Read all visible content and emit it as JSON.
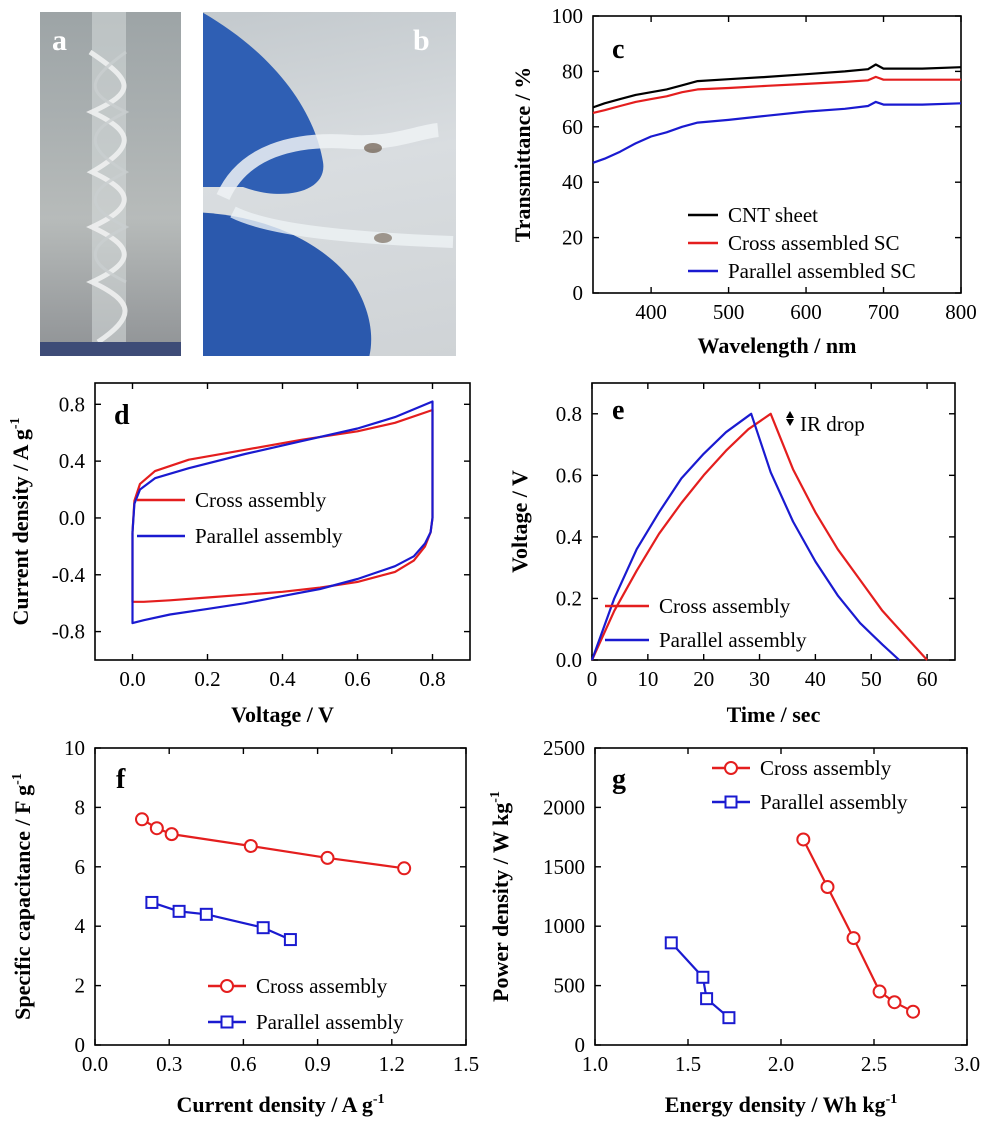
{
  "photos": {
    "a": {
      "letter": "a"
    },
    "b": {
      "letter": "b"
    }
  },
  "colors": {
    "black": "#000000",
    "red": "#e41e1e",
    "blue": "#1a1ad0"
  },
  "chart_data": [
    {
      "id": "c",
      "type": "line",
      "panel_label": "c",
      "xlabel": "Wavelength / nm",
      "ylabel": "Transmittance / %",
      "xlim": [
        325,
        800
      ],
      "ylim": [
        0,
        100
      ],
      "xticks": [
        400,
        500,
        600,
        700,
        800
      ],
      "yticks": [
        0,
        20,
        40,
        60,
        80,
        100
      ],
      "legend_position": "bottom-right",
      "series": [
        {
          "name": "CNT sheet",
          "color": "#000000",
          "x": [
            325,
            340,
            360,
            380,
            400,
            420,
            440,
            460,
            500,
            550,
            600,
            650,
            680,
            690,
            700,
            720,
            750,
            800
          ],
          "y": [
            67,
            68.5,
            70,
            71.5,
            72.5,
            73.5,
            75,
            76.5,
            77.2,
            78,
            79,
            80,
            80.8,
            82.5,
            81,
            81,
            81,
            81.5
          ]
        },
        {
          "name": "Cross assembled SC",
          "color": "#e41e1e",
          "x": [
            325,
            340,
            360,
            380,
            400,
            420,
            440,
            460,
            500,
            550,
            600,
            650,
            680,
            690,
            700,
            720,
            750,
            800
          ],
          "y": [
            65,
            66,
            67.5,
            69,
            70,
            71,
            72.5,
            73.5,
            74,
            74.8,
            75.5,
            76.2,
            76.8,
            78,
            77,
            77,
            77,
            77
          ]
        },
        {
          "name": "Parallel assembled SC",
          "color": "#1a1ad0",
          "x": [
            325,
            340,
            360,
            380,
            400,
            420,
            440,
            460,
            500,
            550,
            600,
            650,
            680,
            690,
            700,
            720,
            750,
            800
          ],
          "y": [
            47,
            48.5,
            51,
            54,
            56.5,
            58,
            60,
            61.5,
            62.5,
            64,
            65.5,
            66.5,
            67.5,
            69,
            68,
            68,
            68,
            68.5
          ]
        }
      ]
    },
    {
      "id": "d",
      "type": "line",
      "panel_label": "d",
      "xlabel": "Voltage / V",
      "ylabel": "Current density / A g",
      "ylabel_sup": "-1",
      "xlim": [
        -0.1,
        0.9
      ],
      "ylim": [
        -1.0,
        0.95
      ],
      "xticks": [
        "0.0",
        "0.2",
        "0.4",
        "0.6",
        "0.8"
      ],
      "yticks": [
        "-0.8",
        "-0.4",
        "0.0",
        "0.4",
        "0.8"
      ],
      "legend_position": "center-left",
      "series": [
        {
          "name": "Cross assembly",
          "color": "#e41e1e",
          "x": [
            0,
            0.005,
            0.02,
            0.06,
            0.15,
            0.3,
            0.45,
            0.6,
            0.7,
            0.8,
            0.8,
            0.795,
            0.78,
            0.75,
            0.7,
            0.6,
            0.5,
            0.4,
            0.3,
            0.2,
            0.1,
            0.03,
            0,
            0
          ],
          "y": [
            -0.1,
            0.12,
            0.24,
            0.33,
            0.41,
            0.48,
            0.55,
            0.61,
            0.67,
            0.76,
            0.0,
            -0.1,
            -0.2,
            -0.3,
            -0.38,
            -0.45,
            -0.49,
            -0.52,
            -0.54,
            -0.56,
            -0.58,
            -0.59,
            -0.59,
            -0.1
          ]
        },
        {
          "name": "Parallel assembly",
          "color": "#1a1ad0",
          "x": [
            0,
            0.005,
            0.02,
            0.06,
            0.15,
            0.3,
            0.45,
            0.6,
            0.7,
            0.8,
            0.8,
            0.795,
            0.78,
            0.75,
            0.7,
            0.6,
            0.5,
            0.4,
            0.3,
            0.2,
            0.1,
            0.03,
            0,
            0
          ],
          "y": [
            -0.1,
            0.1,
            0.2,
            0.28,
            0.35,
            0.45,
            0.54,
            0.63,
            0.71,
            0.82,
            0.0,
            -0.1,
            -0.18,
            -0.27,
            -0.34,
            -0.43,
            -0.5,
            -0.55,
            -0.6,
            -0.64,
            -0.68,
            -0.72,
            -0.74,
            -0.1
          ]
        }
      ]
    },
    {
      "id": "e",
      "type": "line",
      "panel_label": "e",
      "xlabel": "Time / sec",
      "ylabel": "Voltage / V",
      "xlim": [
        0,
        65
      ],
      "ylim": [
        0,
        0.9
      ],
      "xticks": [
        "0",
        "10",
        "20",
        "30",
        "40",
        "50",
        "60"
      ],
      "yticks": [
        "0.0",
        "0.2",
        "0.4",
        "0.6",
        "0.8"
      ],
      "annotation": "IR drop",
      "legend_position": "bottom-left",
      "series": [
        {
          "name": "Cross assembly",
          "color": "#e41e1e",
          "x": [
            0,
            4,
            8,
            12,
            16,
            20,
            24,
            28,
            32,
            36,
            40,
            44,
            48,
            52,
            56,
            60
          ],
          "y": [
            0,
            0.16,
            0.29,
            0.41,
            0.51,
            0.6,
            0.68,
            0.75,
            0.8,
            0.62,
            0.48,
            0.36,
            0.26,
            0.16,
            0.08,
            0
          ]
        },
        {
          "name": "Parallel assembly",
          "color": "#1a1ad0",
          "x": [
            0,
            4,
            8,
            12,
            16,
            20,
            24,
            28.5,
            32,
            36,
            40,
            44,
            48,
            52,
            55
          ],
          "y": [
            0,
            0.2,
            0.36,
            0.48,
            0.59,
            0.67,
            0.74,
            0.8,
            0.61,
            0.45,
            0.32,
            0.21,
            0.12,
            0.05,
            0
          ]
        }
      ]
    },
    {
      "id": "f",
      "type": "scatter",
      "panel_label": "f",
      "xlabel": "Current density / A g",
      "xlabel_sup": "-1",
      "ylabel": "Specific capacitance / F g",
      "ylabel_sup": "-1",
      "xlim": [
        0,
        1.5
      ],
      "ylim": [
        0,
        10
      ],
      "xticks": [
        "0.0",
        "0.3",
        "0.6",
        "0.9",
        "1.2",
        "1.5"
      ],
      "yticks": [
        "0",
        "2",
        "4",
        "6",
        "8",
        "10"
      ],
      "legend_position": "bottom-right",
      "series": [
        {
          "name": "Cross assembly",
          "color": "#e41e1e",
          "marker": "circle",
          "x": [
            0.19,
            0.25,
            0.31,
            0.63,
            0.94,
            1.25
          ],
          "y": [
            7.6,
            7.3,
            7.1,
            6.7,
            6.3,
            5.95
          ]
        },
        {
          "name": "Parallel assembly",
          "color": "#1a1ad0",
          "marker": "square",
          "x": [
            0.23,
            0.34,
            0.45,
            0.68,
            0.79
          ],
          "y": [
            4.8,
            4.5,
            4.4,
            3.95,
            3.55
          ]
        }
      ]
    },
    {
      "id": "g",
      "type": "scatter",
      "panel_label": "g",
      "xlabel": "Energy density / Wh kg",
      "xlabel_sup": "-1",
      "ylabel": "Power density / W kg",
      "ylabel_sup": "-1",
      "xlim": [
        1.0,
        3.0
      ],
      "ylim": [
        0,
        2500
      ],
      "xticks": [
        "1.0",
        "1.5",
        "2.0",
        "2.5",
        "3.0"
      ],
      "yticks": [
        "0",
        "500",
        "1000",
        "1500",
        "2000",
        "2500"
      ],
      "legend_position": "top-right",
      "series": [
        {
          "name": "Cross assembly",
          "color": "#e41e1e",
          "marker": "circle",
          "x": [
            2.12,
            2.25,
            2.39,
            2.53,
            2.61,
            2.71
          ],
          "y": [
            1730,
            1330,
            900,
            450,
            360,
            280
          ]
        },
        {
          "name": "Parallel assembly",
          "color": "#1a1ad0",
          "marker": "square",
          "x": [
            1.41,
            1.58,
            1.6,
            1.72
          ],
          "y": [
            860,
            570,
            390,
            230
          ]
        }
      ]
    }
  ]
}
